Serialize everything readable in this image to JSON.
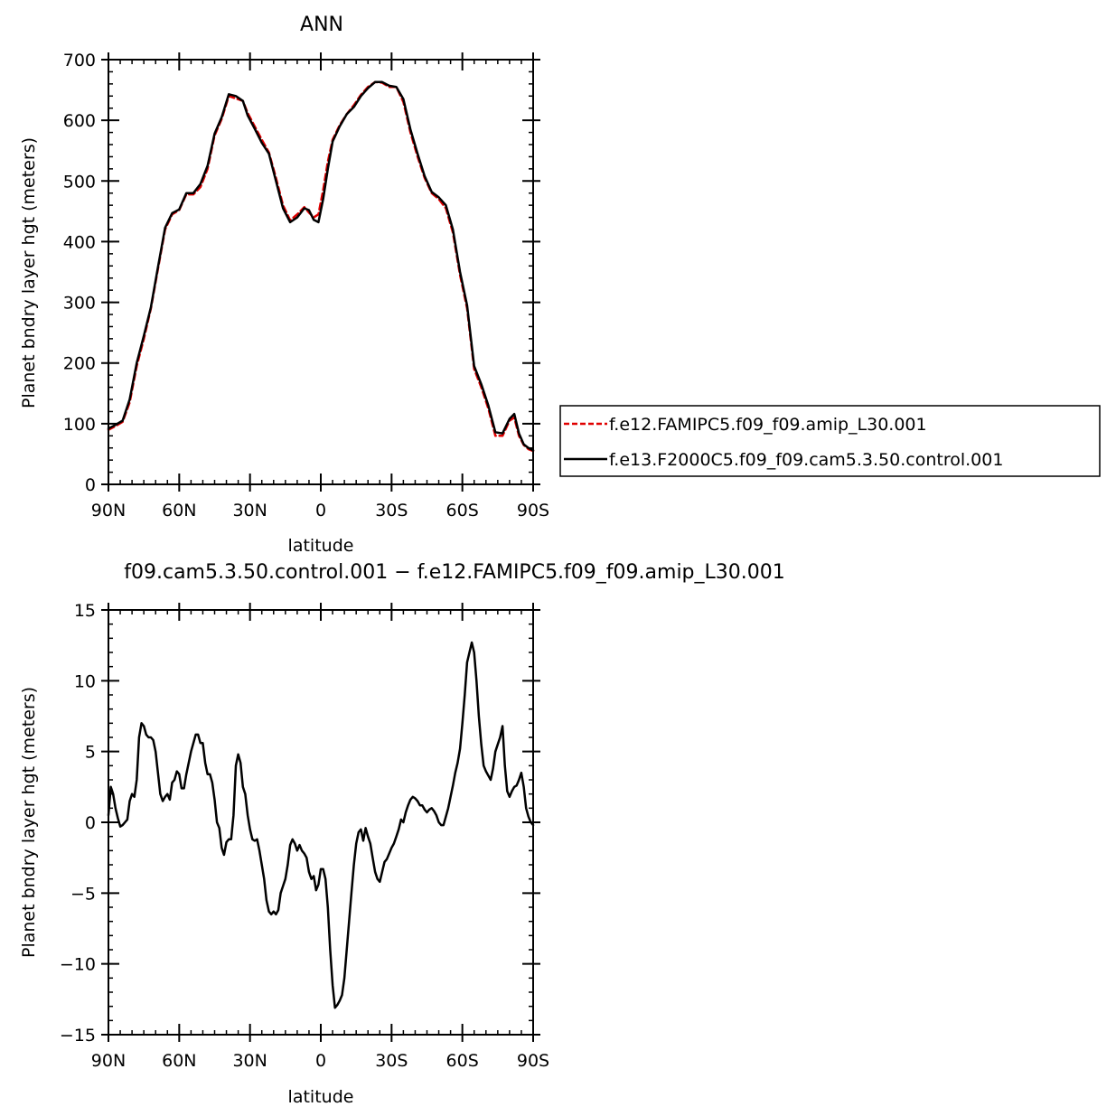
{
  "chart_data": [
    {
      "type": "line",
      "title": "ANN",
      "xlabel": "latitude",
      "ylabel": "Planet bndry layer hgt (meters)",
      "xlim": [
        -90,
        90
      ],
      "ylim": [
        0,
        700
      ],
      "xticks": [
        {
          "value": -90,
          "label": "90N"
        },
        {
          "value": -60,
          "label": "60N"
        },
        {
          "value": -30,
          "label": "30N"
        },
        {
          "value": 0,
          "label": "0"
        },
        {
          "value": 30,
          "label": "30S"
        },
        {
          "value": 60,
          "label": "60S"
        },
        {
          "value": 90,
          "label": "90S"
        }
      ],
      "yticks": [
        {
          "value": 0,
          "label": "0"
        },
        {
          "value": 100,
          "label": "100"
        },
        {
          "value": 200,
          "label": "200"
        },
        {
          "value": 300,
          "label": "300"
        },
        {
          "value": 400,
          "label": "400"
        },
        {
          "value": 500,
          "label": "500"
        },
        {
          "value": 600,
          "label": "600"
        },
        {
          "value": 700,
          "label": "700"
        }
      ],
      "legend_position": "right-middle",
      "series": [
        {
          "name": "f.e12.FAMIPC5.f09_f09.amip_L30.001",
          "color": "#e00000",
          "dash": "dashed",
          "x": [
            -90,
            -87,
            -84,
            -81,
            -78,
            -75,
            -72,
            -69,
            -66,
            -63,
            -60,
            -57,
            -54,
            -51,
            -48,
            -45,
            -42,
            -39,
            -36,
            -33,
            -31,
            -28,
            -25,
            -22,
            -19,
            -16,
            -13,
            -10,
            -7,
            -5,
            -3,
            -1,
            1,
            3,
            5,
            8,
            11,
            14,
            17,
            20,
            23,
            26,
            29,
            32,
            35,
            38,
            41,
            44,
            47,
            50,
            53,
            56,
            59,
            62,
            65,
            68,
            71,
            74,
            77,
            80,
            82,
            84,
            86,
            88,
            90
          ],
          "y": [
            90,
            96,
            103,
            135,
            195,
            240,
            290,
            355,
            420,
            445,
            452,
            478,
            478,
            490,
            520,
            575,
            602,
            640,
            636,
            632,
            612,
            590,
            568,
            547,
            505,
            460,
            435,
            445,
            457,
            448,
            440,
            445,
            485,
            532,
            568,
            592,
            610,
            625,
            642,
            655,
            663,
            662,
            655,
            655,
            630,
            580,
            540,
            505,
            480,
            470,
            455,
            415,
            345,
            290,
            190,
            160,
            125,
            80,
            80,
            105,
            110,
            80,
            65,
            58,
            55
          ]
        },
        {
          "name": "f.e13.F2000C5.f09_f09.cam5.3.50.control.001",
          "color": "#000000",
          "dash": "solid",
          "x": [
            -90,
            -87,
            -84,
            -81,
            -78,
            -75,
            -72,
            -69,
            -66,
            -63,
            -60,
            -57,
            -54,
            -51,
            -48,
            -45,
            -42,
            -39,
            -36,
            -33,
            -31,
            -28,
            -25,
            -22,
            -19,
            -16,
            -13,
            -10,
            -7,
            -5,
            -3,
            -1,
            1,
            3,
            5,
            8,
            11,
            14,
            17,
            20,
            23,
            26,
            29,
            32,
            35,
            38,
            41,
            44,
            47,
            50,
            53,
            56,
            59,
            62,
            65,
            68,
            71,
            74,
            77,
            80,
            82,
            84,
            86,
            88,
            90
          ],
          "y": [
            92,
            98,
            105,
            140,
            200,
            245,
            292,
            358,
            423,
            447,
            453,
            480,
            480,
            495,
            525,
            578,
            605,
            643,
            640,
            632,
            608,
            586,
            563,
            545,
            500,
            455,
            432,
            440,
            455,
            452,
            436,
            432,
            470,
            520,
            565,
            590,
            610,
            622,
            640,
            653,
            663,
            663,
            657,
            655,
            635,
            585,
            545,
            508,
            482,
            473,
            460,
            420,
            350,
            295,
            195,
            165,
            130,
            86,
            84,
            108,
            116,
            84,
            66,
            60,
            56
          ]
        }
      ]
    },
    {
      "type": "line",
      "title": "f09.cam5.3.50.control.001 − f.e12.FAMIPC5.f09_f09.amip_L30.001",
      "xlabel": "latitude",
      "ylabel": "Planet bndry layer hgt (meters)",
      "xlim": [
        -90,
        90
      ],
      "ylim": [
        -15,
        15
      ],
      "xticks": [
        {
          "value": -90,
          "label": "90N"
        },
        {
          "value": -60,
          "label": "60N"
        },
        {
          "value": -30,
          "label": "30N"
        },
        {
          "value": 0,
          "label": "0"
        },
        {
          "value": 30,
          "label": "30S"
        },
        {
          "value": 60,
          "label": "60S"
        },
        {
          "value": 90,
          "label": "90S"
        }
      ],
      "yticks": [
        {
          "value": -15,
          "label": "−15"
        },
        {
          "value": -10,
          "label": "−10"
        },
        {
          "value": -5,
          "label": "−5"
        },
        {
          "value": 0,
          "label": "0"
        },
        {
          "value": 5,
          "label": "5"
        },
        {
          "value": 10,
          "label": "10"
        },
        {
          "value": 15,
          "label": "15"
        }
      ],
      "series": [
        {
          "color": "#000000",
          "dash": "solid",
          "x": [
            -90,
            -89,
            -88,
            -87,
            -86,
            -85,
            -84,
            -83,
            -82,
            -81,
            -80,
            -79,
            -78,
            -77,
            -76,
            -75,
            -74,
            -73,
            -72,
            -71,
            -70,
            -69,
            -68,
            -67,
            -66,
            -65,
            -64,
            -63,
            -62,
            -61,
            -60,
            -59,
            -58,
            -57,
            -56,
            -55,
            -54,
            -53,
            -52,
            -51,
            -50,
            -49,
            -48,
            -47,
            -46,
            -45,
            -44,
            -43,
            -42,
            -41,
            -40,
            -39,
            -38,
            -37,
            -36,
            -35,
            -34,
            -33,
            -32,
            -31,
            -30,
            -29,
            -28,
            -27,
            -26,
            -25,
            -24,
            -23,
            -22,
            -21,
            -20,
            -19,
            -18,
            -17,
            -16,
            -15,
            -14,
            -13,
            -12,
            -11,
            -10,
            -9,
            -8,
            -7,
            -6,
            -5,
            -4,
            -3,
            -2,
            -1,
            0,
            1,
            2,
            3,
            4,
            5,
            6,
            7,
            8,
            9,
            10,
            11,
            12,
            13,
            14,
            15,
            16,
            17,
            18,
            19,
            20,
            21,
            22,
            23,
            24,
            25,
            26,
            27,
            28,
            29,
            30,
            31,
            32,
            33,
            34,
            35,
            36,
            37,
            38,
            39,
            40,
            41,
            42,
            43,
            44,
            45,
            46,
            47,
            48,
            49,
            50,
            51,
            52,
            53,
            54,
            55,
            56,
            57,
            58,
            59,
            60,
            61,
            62,
            63,
            64,
            65,
            66,
            67,
            68,
            69,
            70,
            71,
            72,
            73,
            74,
            75,
            76,
            77,
            78,
            79,
            80,
            81,
            82,
            83,
            84,
            85,
            86,
            87,
            88,
            89,
            90
          ],
          "y": [
            0.5,
            2.5,
            2.0,
            1.0,
            0.3,
            -0.3,
            -0.2,
            0.0,
            0.2,
            1.5,
            2.0,
            1.8,
            3.0,
            6.0,
            7.0,
            6.8,
            6.2,
            6.0,
            6.0,
            5.8,
            5.0,
            3.5,
            2.0,
            1.5,
            1.8,
            2.0,
            1.6,
            2.8,
            3.0,
            3.6,
            3.4,
            2.4,
            2.4,
            3.4,
            4.2,
            5.0,
            5.6,
            6.2,
            6.2,
            5.6,
            5.6,
            4.2,
            3.4,
            3.4,
            2.8,
            1.6,
            0.0,
            -0.4,
            -1.8,
            -2.3,
            -1.4,
            -1.2,
            -1.2,
            0.5,
            4.0,
            4.8,
            4.2,
            2.5,
            2.0,
            0.5,
            -0.5,
            -1.2,
            -1.3,
            -1.2,
            -2.0,
            -3.0,
            -4.0,
            -5.5,
            -6.3,
            -6.5,
            -6.3,
            -6.5,
            -6.2,
            -5.0,
            -4.5,
            -4.0,
            -3.0,
            -1.6,
            -1.2,
            -1.5,
            -2.0,
            -1.6,
            -2.0,
            -2.2,
            -2.5,
            -3.5,
            -4.0,
            -3.8,
            -4.8,
            -4.4,
            -3.3,
            -3.3,
            -4.0,
            -6.0,
            -9.0,
            -11.5,
            -13.1,
            -12.9,
            -12.6,
            -12.2,
            -11.0,
            -9.0,
            -7.0,
            -5.0,
            -3.0,
            -1.5,
            -0.7,
            -0.5,
            -1.3,
            -0.4,
            -1.0,
            -1.5,
            -2.5,
            -3.5,
            -4.0,
            -4.2,
            -3.5,
            -2.8,
            -2.6,
            -2.2,
            -1.8,
            -1.5,
            -1.0,
            -0.5,
            0.2,
            0.0,
            0.7,
            1.2,
            1.6,
            1.8,
            1.7,
            1.5,
            1.2,
            1.2,
            0.9,
            0.7,
            0.9,
            1.0,
            0.8,
            0.5,
            0.0,
            -0.2,
            -0.2,
            0.4,
            1.0,
            1.8,
            2.6,
            3.5,
            4.2,
            5.2,
            7.0,
            9.0,
            11.3,
            12.0,
            12.7,
            12.0,
            10.0,
            7.5,
            5.5,
            4.0,
            3.6,
            3.3,
            3.0,
            3.8,
            5.0,
            5.5,
            6.0,
            6.8,
            4.0,
            2.2,
            1.8,
            2.2,
            2.5,
            2.6,
            3.0,
            3.5,
            2.5,
            1.0,
            0.4,
            0.0,
            -0.2
          ]
        }
      ]
    }
  ]
}
